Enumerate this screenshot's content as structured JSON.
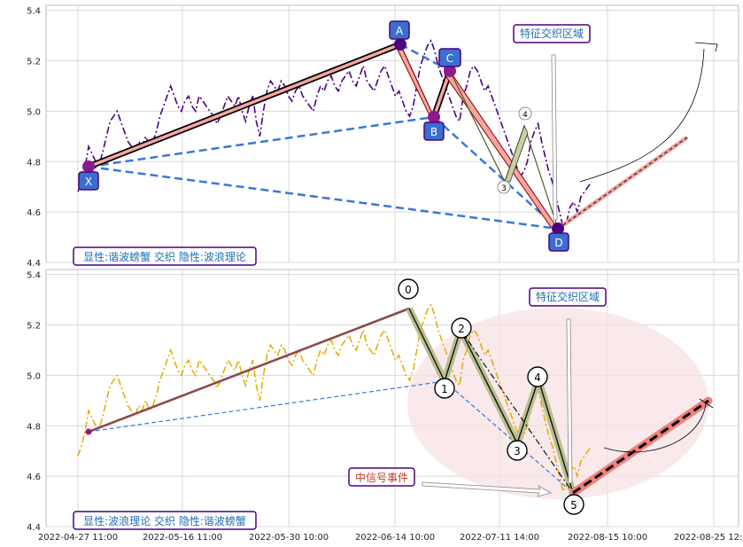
{
  "chart_data": [
    {
      "type": "line",
      "panel": "top",
      "ylim": [
        4.4,
        5.42
      ],
      "yticks": [
        "4.4",
        "4.6",
        "4.8",
        "5.0",
        "5.2",
        "5.4"
      ],
      "grid": true,
      "price_series_color": "#4b0082",
      "price_series": [
        4.68,
        4.72,
        4.78,
        4.86,
        4.83,
        4.8,
        4.79,
        4.84,
        4.9,
        4.96,
        4.98,
        5.0,
        4.96,
        4.92,
        4.88,
        4.86,
        4.84,
        4.88,
        4.86,
        4.9,
        4.86,
        4.88,
        4.92,
        4.98,
        5.02,
        5.06,
        5.1,
        5.06,
        5.02,
        5.0,
        5.04,
        5.06,
        5.02,
        5.0,
        5.06,
        5.04,
        5.02,
        5.0,
        4.98,
        4.95,
        4.98,
        5.02,
        5.06,
        5.04,
        5.02,
        5.06,
        5.0,
        4.96,
        5.02,
        5.06,
        4.96,
        4.9,
        5.0,
        5.08,
        5.12,
        5.1,
        5.08,
        5.12,
        5.1,
        5.06,
        5.04,
        5.08,
        5.1,
        5.06,
        5.04,
        5.02,
        5.0,
        5.06,
        5.1,
        5.08,
        5.12,
        5.14,
        5.1,
        5.08,
        5.12,
        5.14,
        5.16,
        5.12,
        5.1,
        5.14,
        5.18,
        5.12,
        5.1,
        5.08,
        5.12,
        5.16,
        5.18,
        5.14,
        5.1,
        5.06,
        5.08,
        5.04,
        5.0,
        4.98,
        5.02,
        5.1,
        5.18,
        5.22,
        5.26,
        5.28,
        5.24,
        5.18,
        5.14,
        5.1,
        5.06,
        5.02,
        4.98,
        4.96,
        5.06,
        5.1,
        5.16,
        5.18,
        5.16,
        5.12,
        5.08,
        5.1,
        5.06,
        5.02,
        4.98,
        4.94,
        4.9,
        4.86,
        4.82,
        4.78,
        4.74,
        4.76,
        4.8,
        4.88,
        4.92,
        4.95,
        4.88,
        4.82,
        4.76,
        4.72,
        4.66,
        4.6,
        4.54,
        4.56,
        4.62,
        4.64,
        4.6,
        4.66,
        4.68,
        4.7,
        4.72
      ],
      "points": [
        {
          "label": "X",
          "x": "2022-04-28",
          "y": 4.78
        },
        {
          "label": "A",
          "x": "2022-06-20",
          "y": 5.28
        },
        {
          "label": "B",
          "x": "2022-07-06",
          "y": 4.98
        },
        {
          "label": "C",
          "x": "2022-07-09",
          "y": 5.17
        },
        {
          "label": "D",
          "x": "2022-08-17",
          "y": 4.53
        }
      ],
      "small_labels": [
        "3",
        "4"
      ],
      "legend_text": "显性:谐波螃蟹 交织 隐性:波浪理论",
      "zone_text": "特征交织区域",
      "colors": {
        "pattern_fill": "#f4a6a0",
        "pattern_edge": "#8b0000",
        "dash_blue": "#3a78d8",
        "label_box": "#3a6fd0",
        "label_border": "#4b0082",
        "legend_text_color": "#1f6fb2"
      }
    },
    {
      "type": "line",
      "panel": "bottom",
      "ylim": [
        4.4,
        5.42
      ],
      "yticks": [
        "4.4",
        "4.6",
        "4.8",
        "5.0",
        "5.2",
        "5.4"
      ],
      "xticks": [
        "2022-04-27 11:00",
        "2022-05-16 11:00",
        "2022-05-30 10:00",
        "2022-06-14 10:00",
        "2022-07-11 14:00",
        "2022-08-15 10:00",
        "2022-08-25 12:00"
      ],
      "grid": true,
      "price_series_color": "#e8a800",
      "price_series": [
        4.68,
        4.72,
        4.78,
        4.86,
        4.83,
        4.8,
        4.79,
        4.84,
        4.9,
        4.96,
        4.98,
        5.0,
        4.96,
        4.92,
        4.88,
        4.86,
        4.84,
        4.88,
        4.86,
        4.9,
        4.86,
        4.88,
        4.92,
        4.98,
        5.02,
        5.06,
        5.1,
        5.06,
        5.02,
        5.0,
        5.04,
        5.06,
        5.02,
        5.0,
        5.06,
        5.04,
        5.02,
        5.0,
        4.98,
        4.95,
        4.98,
        5.02,
        5.06,
        5.04,
        5.02,
        5.06,
        5.0,
        4.96,
        5.02,
        5.06,
        4.96,
        4.9,
        5.0,
        5.08,
        5.12,
        5.1,
        5.08,
        5.12,
        5.1,
        5.06,
        5.04,
        5.08,
        5.1,
        5.06,
        5.04,
        5.02,
        5.0,
        5.06,
        5.1,
        5.08,
        5.12,
        5.14,
        5.1,
        5.08,
        5.12,
        5.14,
        5.16,
        5.12,
        5.1,
        5.14,
        5.18,
        5.12,
        5.1,
        5.08,
        5.12,
        5.16,
        5.18,
        5.14,
        5.1,
        5.06,
        5.08,
        5.04,
        5.0,
        4.98,
        5.02,
        5.1,
        5.18,
        5.22,
        5.26,
        5.28,
        5.24,
        5.18,
        5.14,
        5.1,
        5.06,
        5.02,
        4.98,
        4.96,
        5.06,
        5.1,
        5.16,
        5.18,
        5.16,
        5.12,
        5.08,
        5.1,
        5.06,
        5.02,
        4.98,
        4.94,
        4.9,
        4.86,
        4.82,
        4.78,
        4.74,
        4.76,
        4.8,
        4.88,
        4.92,
        4.95,
        4.88,
        4.82,
        4.76,
        4.72,
        4.66,
        4.6,
        4.54,
        4.56,
        4.62,
        4.64,
        4.6,
        4.66,
        4.68,
        4.7,
        4.72
      ],
      "wave_points": [
        {
          "label": "0",
          "y": 5.28
        },
        {
          "label": "1",
          "y": 4.97
        },
        {
          "label": "2",
          "y": 5.18
        },
        {
          "label": "3",
          "y": 4.71
        },
        {
          "label": "4",
          "y": 4.96
        },
        {
          "label": "5",
          "y": 4.53
        }
      ],
      "legend_text": "显性:波浪理论 交织 隐性:谐波螃蟹",
      "zone_text": "特征交织区域",
      "signal_text": "中信号事件",
      "colors": {
        "wave_fill": "#b9bf8f",
        "wave_line": "#111111",
        "ellipse": "#f7e1e4",
        "projection": "#f08080",
        "signal_text_color": "#c0392b",
        "trend_line": "#8b4a4a"
      }
    }
  ]
}
